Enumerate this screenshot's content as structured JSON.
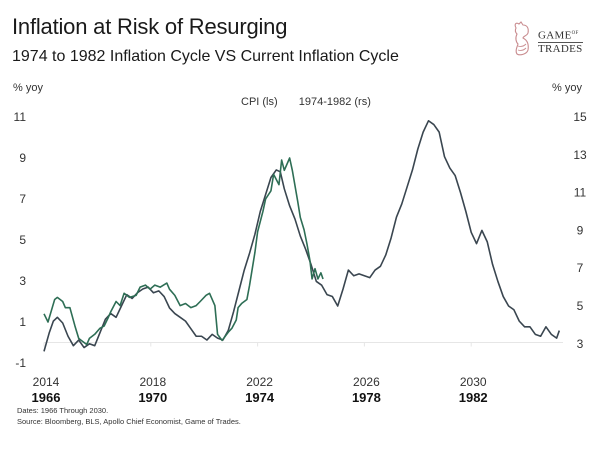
{
  "header": {
    "title": "Inflation at Risk of Resurging",
    "subtitle": "1974 to 1982 Inflation Cycle VS Current Inflation Cycle"
  },
  "logo": {
    "line1": "GAME",
    "line1_small": "OF",
    "line2": "TRADES",
    "icon": "knight-bull-icon"
  },
  "footer": {
    "dates_note": "Dates: 1966 Through 2030.",
    "source_note": "Source: Bloomberg, BLS, Apollo Chief Economist, Game of Trades."
  },
  "chart_data": {
    "type": "line",
    "title": "Inflation at Risk of Resurging",
    "subtitle": "1974 to 1982 Inflation Cycle VS Current Inflation Cycle",
    "ylabel_left": "% yoy",
    "ylabel_right": "% yoy",
    "xlabel": "",
    "legend": {
      "placement": "top-center",
      "entries": [
        "CPI (ls)",
        "1974-1982 (rs)"
      ]
    },
    "colors": {
      "cpi": "#2e6e55",
      "historical": "#3a4650",
      "zero_line": "#e6e6e6"
    },
    "x_ticks_top": [
      "2014",
      "2018",
      "2022",
      "2026",
      "2030"
    ],
    "x_ticks_bottom": [
      "1966",
      "1970",
      "1974",
      "1978",
      "1982"
    ],
    "x_tick_values": [
      2014,
      2018,
      2022,
      2026,
      2030
    ],
    "x_range": [
      2014,
      2033.3
    ],
    "y_left": {
      "ticks": [
        11,
        9,
        7,
        5,
        3,
        1,
        -1
      ],
      "range": [
        -1,
        11
      ]
    },
    "y_right": {
      "ticks": [
        15,
        13,
        11,
        9,
        7,
        5,
        3
      ],
      "range": [
        3,
        15
      ]
    },
    "grid": false,
    "series": [
      {
        "name": "CPI (ls)",
        "axis": "left",
        "x": [
          2014.0,
          2014.15,
          2014.4,
          2014.5,
          2014.7,
          2014.8,
          2014.97,
          2015.16,
          2015.3,
          2015.4,
          2015.6,
          2015.7,
          2015.9,
          2016.1,
          2016.25,
          2016.4,
          2016.5,
          2016.7,
          2016.85,
          2017.0,
          2017.2,
          2017.45,
          2017.6,
          2017.8,
          2017.97,
          2018.15,
          2018.35,
          2018.6,
          2018.7,
          2018.9,
          2019.1,
          2019.3,
          2019.5,
          2019.7,
          2019.85,
          2020.07,
          2020.2,
          2020.4,
          2020.5,
          2020.67,
          2020.9,
          2021.04,
          2021.2,
          2021.27,
          2021.4,
          2021.6,
          2021.7,
          2021.9,
          2022.0,
          2022.2,
          2022.3,
          2022.5,
          2022.6,
          2022.8,
          2022.9,
          2023.0,
          2023.2,
          2023.3,
          2023.5,
          2023.6,
          2023.74,
          2023.85,
          2023.96,
          2024.04,
          2024.15,
          2024.26,
          2024.37,
          2024.45
        ],
        "values": [
          1.4,
          1.0,
          2.1,
          2.2,
          2.0,
          1.7,
          1.7,
          0.8,
          0.2,
          0.1,
          -0.1,
          0.2,
          0.4,
          0.7,
          0.8,
          1.2,
          1.5,
          2.0,
          1.8,
          2.4,
          2.2,
          2.3,
          2.7,
          2.8,
          2.6,
          2.8,
          2.7,
          2.9,
          2.6,
          2.3,
          1.8,
          1.9,
          1.7,
          1.8,
          2.0,
          2.3,
          2.4,
          1.8,
          0.4,
          0.1,
          0.5,
          0.7,
          1.1,
          1.7,
          1.9,
          2.1,
          2.8,
          4.4,
          5.4,
          6.4,
          7.0,
          7.4,
          8.2,
          7.7,
          8.9,
          8.4,
          9.0,
          8.4,
          6.9,
          6.1,
          5.5,
          4.8,
          4.0,
          3.1,
          3.6,
          3.1,
          3.4,
          3.1
        ]
      },
      {
        "name": "1974-1982 (rs)",
        "axis": "right",
        "x": [
          1966.0,
          1966.2,
          1966.35,
          1966.5,
          1966.7,
          1966.9,
          1967.1,
          1967.3,
          1967.5,
          1967.7,
          1967.9,
          1968.1,
          1968.3,
          1968.5,
          1968.7,
          1968.9,
          1969.1,
          1969.3,
          1969.5,
          1969.7,
          1969.9,
          1970.1,
          1970.3,
          1970.5,
          1970.7,
          1970.9,
          1971.1,
          1971.3,
          1971.5,
          1971.7,
          1971.9,
          1972.1,
          1972.3,
          1972.5,
          1972.7,
          1972.9,
          1973.1,
          1973.3,
          1973.5,
          1973.7,
          1973.9,
          1974.1,
          1974.3,
          1974.5,
          1974.7,
          1974.85,
          1975.0,
          1975.2,
          1975.4,
          1975.6,
          1975.8,
          1976.0,
          1976.2,
          1976.4,
          1976.6,
          1976.8,
          1977.0,
          1977.2,
          1977.4,
          1977.6,
          1977.8,
          1978.0,
          1978.2,
          1978.4,
          1978.6,
          1978.8,
          1979.0,
          1979.2,
          1979.4,
          1979.6,
          1979.8,
          1980.0,
          1980.2,
          1980.4,
          1980.6,
          1980.8,
          1981.0,
          1981.2,
          1981.4,
          1981.6,
          1981.8,
          1982.0,
          1982.2,
          1982.4,
          1982.6,
          1982.8,
          1983.0,
          1983.2,
          1983.4,
          1983.6,
          1983.8,
          1984.0,
          1984.2,
          1984.4,
          1984.6,
          1984.8,
          1985.0,
          1985.2,
          1985.3
        ],
        "values": [
          2.6,
          3.6,
          4.2,
          4.4,
          4.1,
          3.4,
          2.9,
          3.2,
          2.8,
          3.0,
          2.9,
          3.6,
          4.3,
          4.6,
          4.4,
          5.0,
          5.6,
          5.4,
          5.7,
          5.9,
          6.0,
          5.7,
          5.8,
          5.5,
          4.9,
          4.6,
          4.4,
          4.2,
          3.8,
          3.4,
          3.4,
          3.2,
          3.5,
          3.3,
          3.2,
          3.7,
          4.7,
          5.8,
          6.9,
          7.8,
          8.8,
          10.0,
          10.9,
          11.8,
          12.2,
          12.1,
          11.2,
          10.3,
          9.6,
          8.7,
          8.0,
          7.2,
          6.3,
          6.1,
          5.6,
          5.5,
          5.0,
          5.9,
          6.9,
          6.6,
          6.7,
          6.6,
          6.5,
          6.9,
          7.1,
          7.7,
          8.6,
          9.7,
          10.4,
          11.3,
          12.2,
          13.3,
          14.2,
          14.8,
          14.6,
          14.2,
          12.9,
          12.3,
          11.9,
          11.0,
          10.0,
          8.9,
          8.3,
          9.0,
          8.4,
          7.2,
          6.3,
          5.5,
          5.0,
          4.8,
          4.2,
          3.9,
          3.9,
          3.5,
          3.4,
          3.9,
          3.5,
          3.3,
          3.7
        ]
      }
    ]
  }
}
